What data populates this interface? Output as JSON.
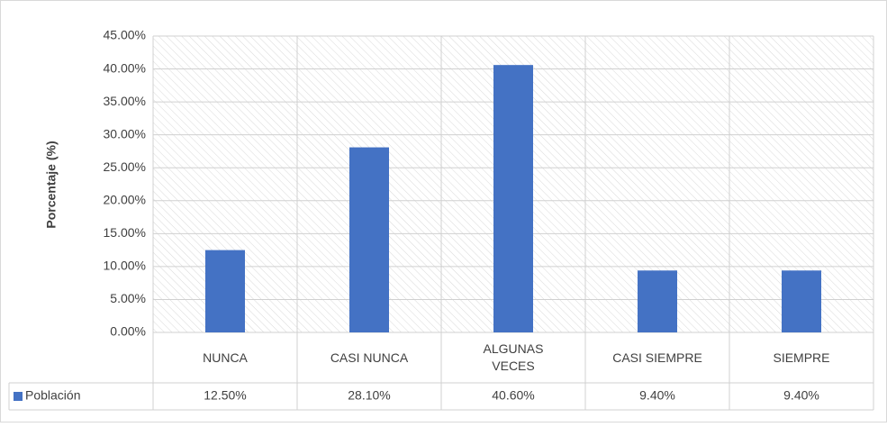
{
  "chart_data": {
    "type": "bar",
    "y_label": "Porcentaje (%)",
    "categories": [
      "NUNCA",
      "CASI NUNCA",
      "ALGUNAS VECES",
      "CASI SIEMPRE",
      "SIEMPRE"
    ],
    "series": [
      {
        "name": "Población",
        "color": "#4472c4",
        "values": [
          12.5,
          28.1,
          40.6,
          9.4,
          9.4
        ],
        "value_labels": [
          "12.50%",
          "28.10%",
          "40.60%",
          "9.40%",
          "9.40%"
        ]
      }
    ],
    "ylim": [
      0,
      45
    ],
    "yticks": [
      {
        "value": 0,
        "label": "0.00%"
      },
      {
        "value": 5,
        "label": "5.00%"
      },
      {
        "value": 10,
        "label": "10.00%"
      },
      {
        "value": 15,
        "label": "15.00%"
      },
      {
        "value": 20,
        "label": "20.00%"
      },
      {
        "value": 25,
        "label": "25.00%"
      },
      {
        "value": 30,
        "label": "30.00%"
      },
      {
        "value": 35,
        "label": "35.00%"
      },
      {
        "value": 40,
        "label": "40.00%"
      },
      {
        "value": 45,
        "label": "45.00%"
      }
    ],
    "grid": true,
    "data_table": true
  }
}
